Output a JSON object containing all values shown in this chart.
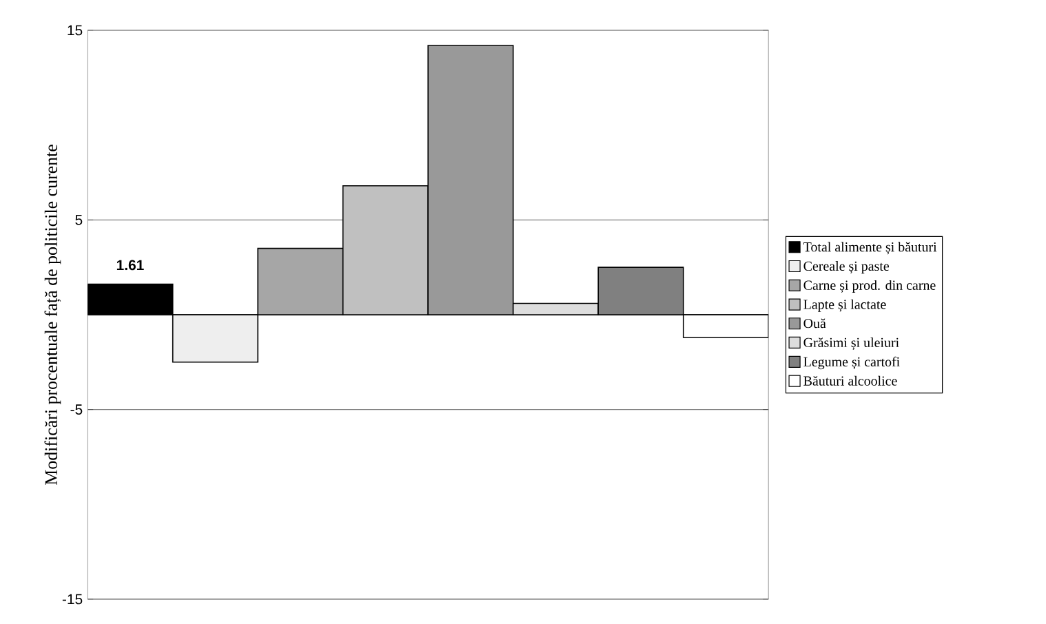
{
  "chart_data": {
    "type": "bar",
    "ylabel": "Modificări procentuale față de politicile curente",
    "categories": [
      null,
      null,
      null,
      null,
      null,
      null,
      null,
      null
    ],
    "series": [
      {
        "name": "Total alimente și băuturi",
        "color": "#000000",
        "values": [
          1.61,
          null,
          null,
          null,
          null,
          null,
          null,
          null
        ],
        "value_labels": [
          "1.61",
          null,
          null,
          null,
          null,
          null,
          null,
          null
        ]
      },
      {
        "name": "Cereale și paste",
        "color": "#eeeeee",
        "values": [
          null,
          -2.5,
          null,
          null,
          null,
          null,
          null,
          null
        ]
      },
      {
        "name": "Carne și prod. din carne",
        "color": "#a6a6a6",
        "values": [
          null,
          null,
          3.5,
          null,
          null,
          null,
          null,
          null
        ]
      },
      {
        "name": "Lapte și lactate",
        "color": "#c0c0c0",
        "values": [
          null,
          null,
          null,
          6.8,
          null,
          null,
          null,
          null
        ]
      },
      {
        "name": "Ouă",
        "color": "#999999",
        "values": [
          null,
          null,
          null,
          null,
          14.2,
          null,
          null,
          null
        ]
      },
      {
        "name": "Grăsimi și uleiuri",
        "color": "#dddddd",
        "values": [
          null,
          null,
          null,
          null,
          null,
          0.6,
          null,
          null
        ]
      },
      {
        "name": "Legume și cartofi",
        "color": "#808080",
        "values": [
          null,
          null,
          null,
          null,
          null,
          null,
          2.5,
          null
        ]
      },
      {
        "name": "Băuturi alcoolice",
        "color": "#ffffff",
        "values": [
          null,
          null,
          null,
          null,
          null,
          null,
          null,
          -1.2
        ]
      }
    ],
    "ylim": [
      -15,
      15
    ],
    "yticks": [
      -15,
      -5,
      5,
      15
    ],
    "grid": "y",
    "legend": "right"
  }
}
